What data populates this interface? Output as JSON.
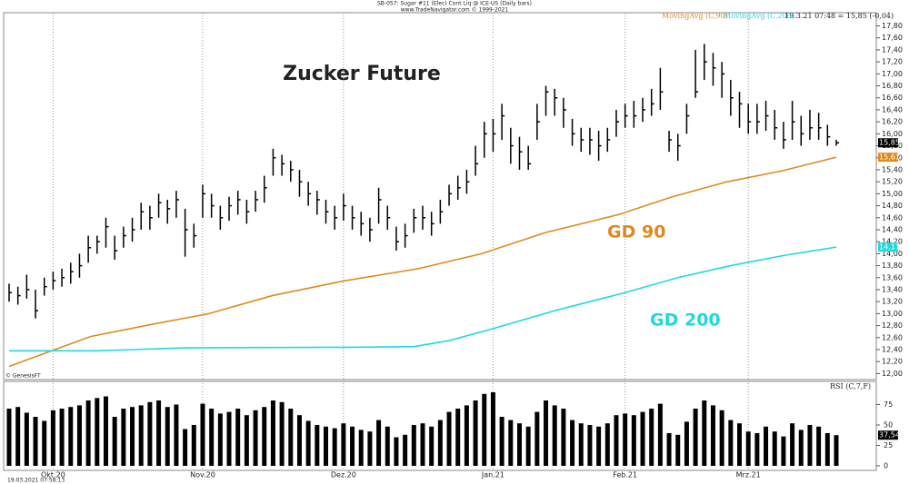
{
  "chart_data": [
    {
      "type": "ohlc",
      "header": "SB-057: Sugar #11 (Elec) Cont Liq @ ICE-US (Daily bars)",
      "copyright": "www.TradeNavigator.com © 1999-2021",
      "title": "Zucker Future",
      "status": "19.3.21 07:48 = 15,85 (-0,04)",
      "source_note": "© GenesisFT",
      "timestamp": "19.03.2021 07:58:13",
      "annotations": [
        "GD 90",
        "GD 200"
      ],
      "color": "#000000",
      "xticks": [
        {
          "value": 5,
          "label": "Okt.20"
        },
        {
          "value": 22,
          "label": "Nov.20"
        },
        {
          "value": 38,
          "label": "Dez.20"
        },
        {
          "value": 55,
          "label": "Jan.21"
        },
        {
          "value": 70,
          "label": "Feb.21"
        },
        {
          "value": 84,
          "label": "Mrz.21"
        }
      ],
      "values": [
        13.35,
        13.3,
        13.4,
        13.05,
        13.45,
        13.55,
        13.6,
        13.7,
        13.8,
        14.1,
        14.2,
        14.45,
        14.05,
        14.3,
        14.4,
        14.7,
        14.6,
        14.85,
        14.75,
        14.9,
        14.4,
        14.3,
        15.0,
        14.8,
        14.6,
        14.8,
        14.9,
        14.7,
        14.9,
        15.1,
        15.6,
        15.5,
        15.4,
        15.2,
        15.0,
        14.9,
        14.7,
        14.6,
        14.8,
        14.6,
        14.5,
        14.4,
        14.9,
        14.6,
        14.2,
        14.3,
        14.6,
        14.6,
        14.5,
        14.7,
        15.0,
        15.1,
        15.2,
        15.5,
        16.0,
        16.0,
        16.3,
        15.8,
        15.7,
        15.5,
        16.2,
        16.7,
        16.6,
        16.4,
        16.0,
        15.9,
        15.9,
        15.8,
        15.9,
        16.2,
        16.3,
        16.3,
        16.4,
        16.5,
        16.7,
        15.9,
        15.8,
        16.3,
        16.7,
        17.2,
        17.1,
        17.0,
        16.6,
        16.5,
        16.2,
        16.2,
        16.3,
        16.1,
        15.9,
        16.2,
        16.0,
        16.1,
        16.1,
        15.95,
        15.85
      ],
      "high": [
        13.5,
        13.45,
        13.65,
        13.4,
        13.6,
        13.7,
        13.75,
        13.85,
        14.0,
        14.3,
        14.3,
        14.6,
        14.3,
        14.45,
        14.6,
        14.85,
        14.8,
        15.0,
        14.9,
        15.05,
        14.75,
        14.5,
        15.15,
        15.0,
        14.8,
        14.95,
        15.05,
        14.9,
        15.05,
        15.3,
        15.75,
        15.65,
        15.55,
        15.4,
        15.2,
        15.05,
        14.9,
        14.8,
        15.0,
        14.8,
        14.7,
        14.6,
        15.1,
        14.8,
        14.45,
        14.5,
        14.75,
        14.8,
        14.7,
        14.9,
        15.15,
        15.3,
        15.4,
        15.8,
        16.2,
        16.25,
        16.5,
        16.1,
        15.95,
        15.8,
        16.5,
        16.8,
        16.75,
        16.6,
        16.25,
        16.1,
        16.1,
        16.05,
        16.1,
        16.4,
        16.5,
        16.55,
        16.6,
        16.75,
        17.1,
        16.05,
        16.0,
        16.5,
        17.4,
        17.5,
        17.35,
        17.2,
        16.9,
        16.7,
        16.5,
        16.5,
        16.55,
        16.4,
        16.2,
        16.55,
        16.3,
        16.4,
        16.35,
        16.15,
        15.9
      ],
      "low": [
        13.2,
        13.15,
        13.25,
        12.92,
        13.3,
        13.4,
        13.45,
        13.5,
        13.6,
        13.85,
        14.0,
        14.1,
        13.9,
        14.1,
        14.2,
        14.4,
        14.4,
        14.6,
        14.5,
        14.6,
        13.95,
        14.1,
        14.6,
        14.6,
        14.4,
        14.55,
        14.65,
        14.5,
        14.7,
        14.85,
        15.3,
        15.3,
        15.2,
        14.95,
        14.8,
        14.65,
        14.5,
        14.4,
        14.55,
        14.4,
        14.3,
        14.2,
        14.5,
        14.4,
        14.05,
        14.1,
        14.35,
        14.4,
        14.3,
        14.5,
        14.8,
        14.9,
        15.0,
        15.3,
        15.6,
        15.7,
        15.9,
        15.5,
        15.4,
        15.4,
        15.9,
        16.3,
        16.3,
        16.1,
        15.8,
        15.7,
        15.65,
        15.55,
        15.7,
        15.95,
        16.1,
        16.1,
        16.2,
        16.3,
        16.4,
        15.7,
        15.55,
        16.0,
        16.6,
        16.9,
        16.8,
        16.6,
        16.3,
        16.1,
        16.0,
        16.0,
        16.05,
        15.9,
        15.75,
        15.9,
        15.8,
        15.9,
        15.9,
        15.8,
        15.8
      ],
      "last_label": "15,85",
      "series": [
        {
          "name": "MovingAvg (C,90)",
          "color": "#e08a1e",
          "x": [
            0,
            5.2,
            9.3,
            15.5,
            22.7,
            29.9,
            38.2,
            46.5,
            53.7,
            60.9,
            69.2,
            75.4,
            81.6,
            87.8,
            94
          ],
          "values": [
            12.12,
            12.4,
            12.62,
            12.8,
            13.0,
            13.3,
            13.55,
            13.75,
            14.0,
            14.35,
            14.65,
            14.95,
            15.2,
            15.38,
            15.61
          ],
          "last_label": "15,61"
        },
        {
          "name": "MovingAvg (C,200)",
          "color": "#1fd8e0",
          "x": [
            0,
            10,
            20,
            40,
            46,
            50,
            55,
            62,
            70,
            76,
            82,
            88,
            94
          ],
          "values": [
            12.38,
            12.38,
            12.43,
            12.44,
            12.45,
            12.55,
            12.75,
            13.05,
            13.35,
            13.6,
            13.8,
            13.97,
            14.11
          ],
          "last_label": "14,11"
        }
      ],
      "ylim": [
        11.9,
        18.02
      ],
      "yticks": [
        {
          "value": 12,
          "label": "12,00"
        },
        {
          "value": 12.2,
          "label": "12,20"
        },
        {
          "value": 12.4,
          "label": "12,40"
        },
        {
          "value": 12.6,
          "label": "12,60"
        },
        {
          "value": 12.8,
          "label": "12,80"
        },
        {
          "value": 13,
          "label": "13,00"
        },
        {
          "value": 13.2,
          "label": "13,20"
        },
        {
          "value": 13.4,
          "label": "13,40"
        },
        {
          "value": 13.6,
          "label": "13,60"
        },
        {
          "value": 13.8,
          "label": "13,80"
        },
        {
          "value": 14,
          "label": "14,00"
        },
        {
          "value": 14.2,
          "label": "14,20"
        },
        {
          "value": 14.4,
          "label": "14,40"
        },
        {
          "value": 14.6,
          "label": "14,60"
        },
        {
          "value": 14.8,
          "label": "14,80"
        },
        {
          "value": 15,
          "label": "15,00"
        },
        {
          "value": 15.2,
          "label": "15,20"
        },
        {
          "value": 15.4,
          "label": "15,40"
        },
        {
          "value": 15.6,
          "label": "15,60"
        },
        {
          "value": 15.8,
          "label": "15,80"
        },
        {
          "value": 16,
          "label": "16,00"
        },
        {
          "value": 16.2,
          "label": "16,20"
        },
        {
          "value": 16.4,
          "label": "16,40"
        },
        {
          "value": 16.6,
          "label": "16,60"
        },
        {
          "value": 16.8,
          "label": "16,80"
        },
        {
          "value": 17,
          "label": "17,00"
        },
        {
          "value": 17.2,
          "label": "17,20"
        },
        {
          "value": 17.4,
          "label": "17,40"
        },
        {
          "value": 17.6,
          "label": "17,60"
        },
        {
          "value": 17.8,
          "label": "17,80"
        }
      ]
    },
    {
      "type": "bar",
      "title": "RSI (C,7,F)",
      "color": "#000000",
      "values": [
        70,
        72,
        65,
        60,
        55,
        68,
        70,
        72,
        74,
        80,
        83,
        85,
        60,
        70,
        72,
        74,
        78,
        80,
        72,
        75,
        45,
        50,
        76,
        70,
        64,
        66,
        70,
        62,
        68,
        72,
        80,
        78,
        70,
        62,
        55,
        50,
        48,
        46,
        52,
        48,
        44,
        42,
        56,
        48,
        35,
        38,
        50,
        52,
        48,
        56,
        66,
        70,
        74,
        80,
        88,
        90,
        60,
        56,
        52,
        48,
        66,
        80,
        74,
        70,
        56,
        52,
        50,
        48,
        52,
        62,
        64,
        62,
        66,
        70,
        76,
        40,
        38,
        54,
        70,
        80,
        74,
        68,
        56,
        52,
        42,
        40,
        48,
        42,
        36,
        52,
        44,
        50,
        48,
        40,
        37.54
      ],
      "last_label": "37,54",
      "ylim": [
        0,
        100
      ],
      "yticks": [
        0,
        25,
        50,
        75
      ]
    }
  ]
}
